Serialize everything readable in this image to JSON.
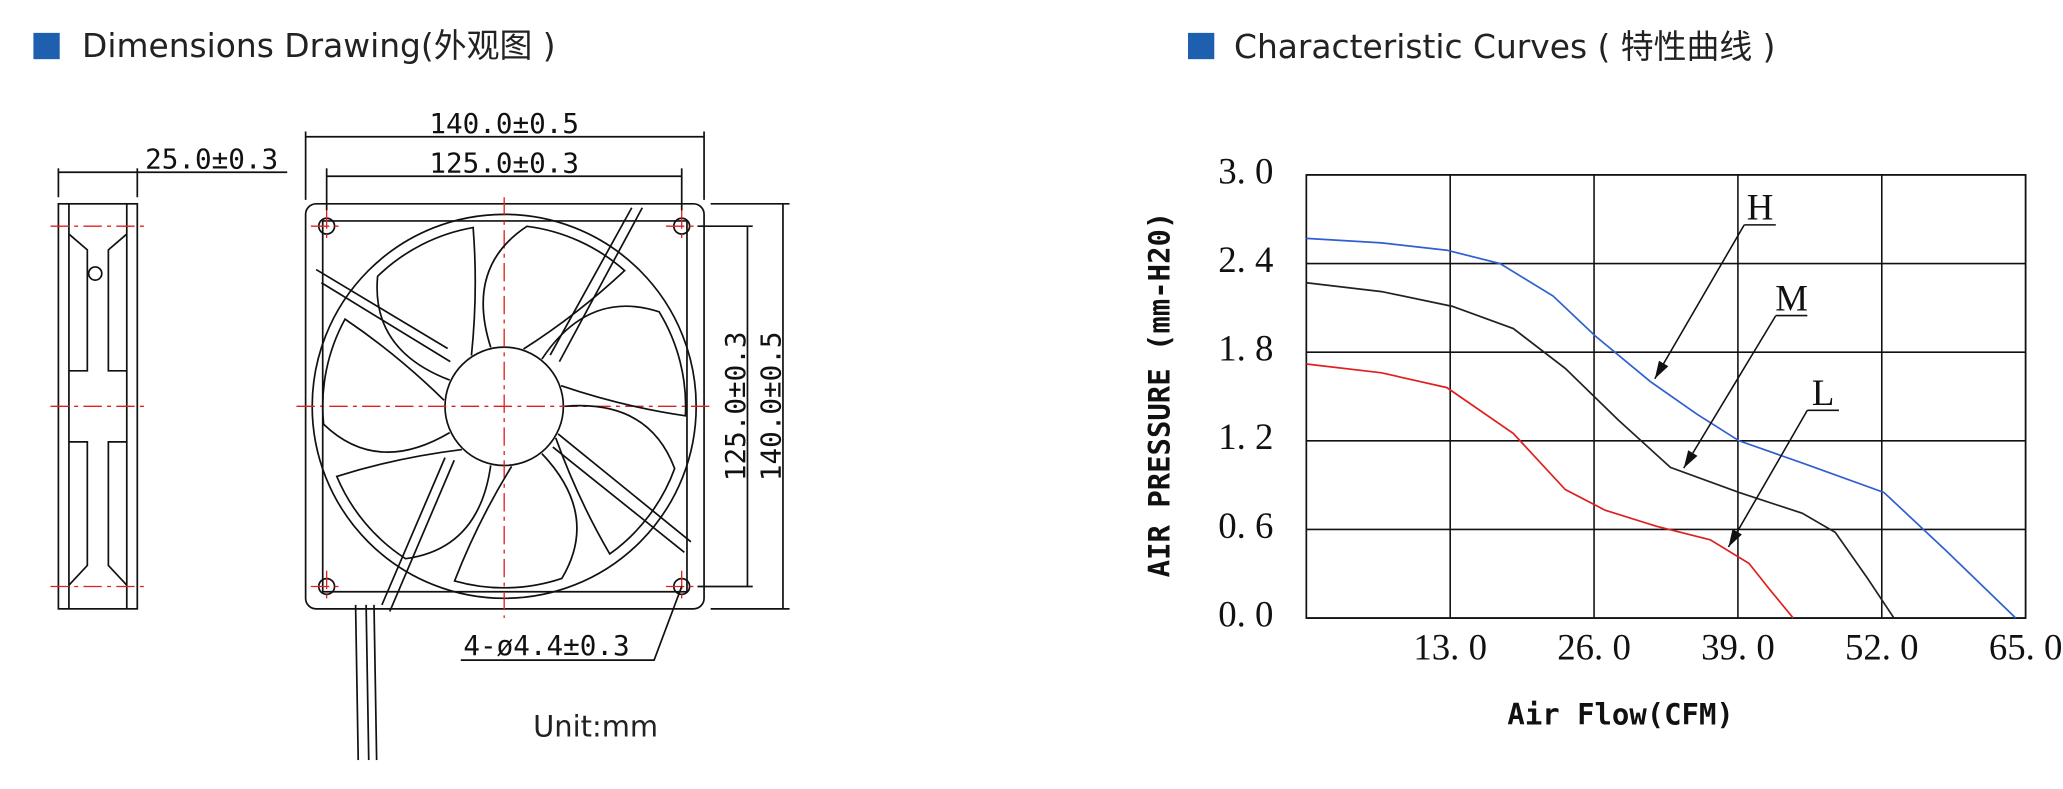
{
  "dimensions": {
    "title": "Dimensions Drawing(外观图 )",
    "depth": "25.0±0.3",
    "outer_width": "140.0±0.5",
    "hole_spacing_width": "125.0±0.3",
    "hole_spacing_height": "125.0±0.3",
    "outer_height": "140.0±0.5",
    "hole_diameter": "4-ø4.4±0.3",
    "unit": "Unit:mm"
  },
  "chart_data": {
    "type": "line",
    "title": "Characteristic Curves ( 特性曲线 )",
    "x_label": "Air Flow(CFM)",
    "y_label": "AIR PRESSURE (mm-H20)",
    "xlim": [
      0,
      65
    ],
    "ylim": [
      0,
      3.0
    ],
    "xticks": [
      {
        "value": 13,
        "label": "13. 0"
      },
      {
        "value": 26,
        "label": "26. 0"
      },
      {
        "value": 39,
        "label": "39. 0"
      },
      {
        "value": 52,
        "label": "52. 0"
      },
      {
        "value": 65,
        "label": "65. 0"
      }
    ],
    "yticks": [
      {
        "value": 0,
        "label": "0. 0"
      },
      {
        "value": 0.6,
        "label": "0. 6"
      },
      {
        "value": 1.2,
        "label": "1. 2"
      },
      {
        "value": 1.8,
        "label": "1. 8"
      },
      {
        "value": 2.4,
        "label": "2. 4"
      },
      {
        "value": 3.0,
        "label": "3. 0"
      }
    ],
    "grid": true,
    "series": [
      {
        "name": "H",
        "color": "#2f5fd0",
        "x": [
          0,
          6.8,
          12.7,
          17.5,
          22.3,
          26.1,
          31.1,
          35.3,
          39.1,
          44.8,
          52.2,
          57.9,
          64.1
        ],
        "values": [
          2.57,
          2.54,
          2.49,
          2.4,
          2.18,
          1.91,
          1.6,
          1.38,
          1.2,
          1.05,
          0.85,
          0.45,
          0
        ]
      },
      {
        "name": "M",
        "color": "#222222",
        "x": [
          0,
          6.8,
          13.2,
          18.7,
          23.4,
          28.2,
          32.9,
          39.1,
          44.8,
          47.8,
          50.7,
          53.1
        ],
        "values": [
          2.27,
          2.21,
          2.11,
          1.96,
          1.69,
          1.34,
          1.02,
          0.85,
          0.71,
          0.58,
          0.27,
          0
        ]
      },
      {
        "name": "L",
        "color": "#e02020",
        "x": [
          0,
          6.8,
          12.7,
          18.7,
          23.4,
          27.0,
          31.7,
          36.5,
          40.0,
          41.8,
          44.0
        ],
        "values": [
          1.72,
          1.66,
          1.56,
          1.25,
          0.87,
          0.73,
          0.62,
          0.53,
          0.37,
          0.2,
          0
        ]
      }
    ]
  }
}
